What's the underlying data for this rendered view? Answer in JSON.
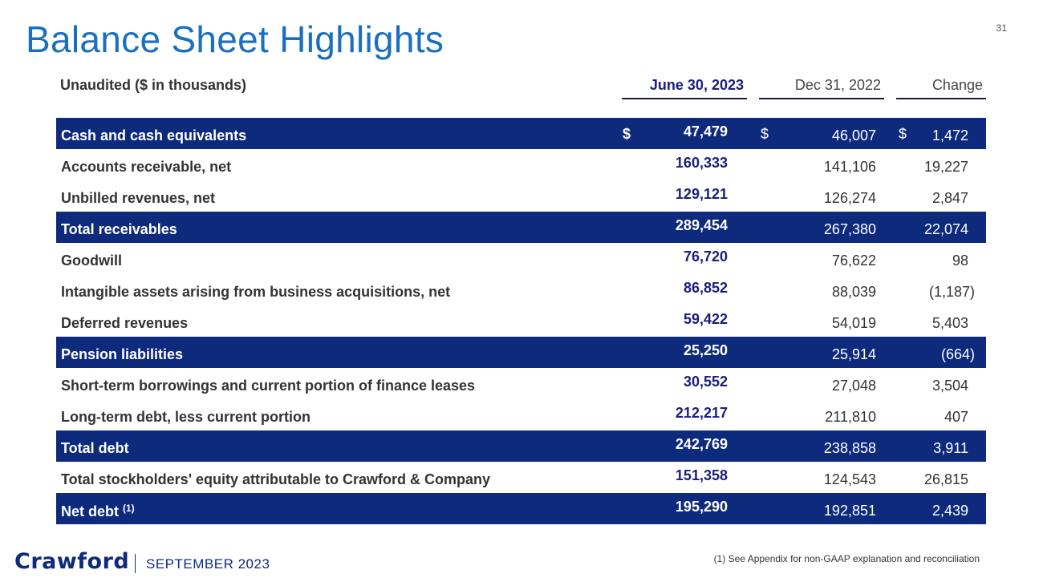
{
  "slide": {
    "title": "Balance Sheet Highlights",
    "page_number": "31"
  },
  "header": {
    "label": "Unaudited ($ in thousands)",
    "col_june": "June 30, 2023",
    "col_dec": "Dec 31, 2022",
    "col_change": "Change"
  },
  "rows": [
    {
      "label": "Cash and cash equivalents",
      "sup": "",
      "cur": "$",
      "june": "47,479",
      "dec": "46,007",
      "change": "1,472",
      "highlight": true
    },
    {
      "label": "Accounts receivable, net",
      "sup": "",
      "cur": "",
      "june": "160,333",
      "dec": "141,106",
      "change": "19,227",
      "highlight": false
    },
    {
      "label": "Unbilled revenues, net",
      "sup": "",
      "cur": "",
      "june": "129,121",
      "dec": "126,274",
      "change": "2,847",
      "highlight": false
    },
    {
      "label": "Total receivables",
      "sup": "",
      "cur": "",
      "june": "289,454",
      "dec": "267,380",
      "change": "22,074",
      "highlight": true
    },
    {
      "label": "Goodwill",
      "sup": "",
      "cur": "",
      "june": "76,720",
      "dec": "76,622",
      "change": "98",
      "highlight": false
    },
    {
      "label": "Intangible assets arising from business acquisitions, net",
      "sup": "",
      "cur": "",
      "june": "86,852",
      "dec": "88,039",
      "change": "(1,187)",
      "highlight": false
    },
    {
      "label": "Deferred revenues",
      "sup": "",
      "cur": "",
      "june": "59,422",
      "dec": "54,019",
      "change": "5,403",
      "highlight": false
    },
    {
      "label": "Pension liabilities",
      "sup": "",
      "cur": "",
      "june": "25,250",
      "dec": "25,914",
      "change": "(664)",
      "highlight": true
    },
    {
      "label": "Short-term borrowings and current portion of finance leases",
      "sup": "",
      "cur": "",
      "june": "30,552",
      "dec": "27,048",
      "change": "3,504",
      "highlight": false
    },
    {
      "label": "Long-term debt, less current portion",
      "sup": "",
      "cur": "",
      "june": "212,217",
      "dec": "211,810",
      "change": "407",
      "highlight": false
    },
    {
      "label": "Total debt",
      "sup": "",
      "cur": "",
      "june": "242,769",
      "dec": "238,858",
      "change": "3,911",
      "highlight": true
    },
    {
      "label": "Total stockholders' equity attributable to Crawford & Company",
      "sup": "",
      "cur": "",
      "june": "151,358",
      "dec": "124,543",
      "change": "26,815",
      "highlight": false
    },
    {
      "label": "Net debt",
      "sup": "(1)",
      "cur": "",
      "june": "195,290",
      "dec": "192,851",
      "change": "2,439",
      "highlight": true
    }
  ],
  "footer": {
    "logo_text": "Crawford",
    "date": "SEPTEMBER 2023",
    "footnote": "(1) See Appendix for non-GAAP explanation and reconciliation"
  },
  "colors": {
    "title": "#1b6fc0",
    "highlight_row": "#0e2a7c",
    "june_value": "#1b1f7a"
  }
}
